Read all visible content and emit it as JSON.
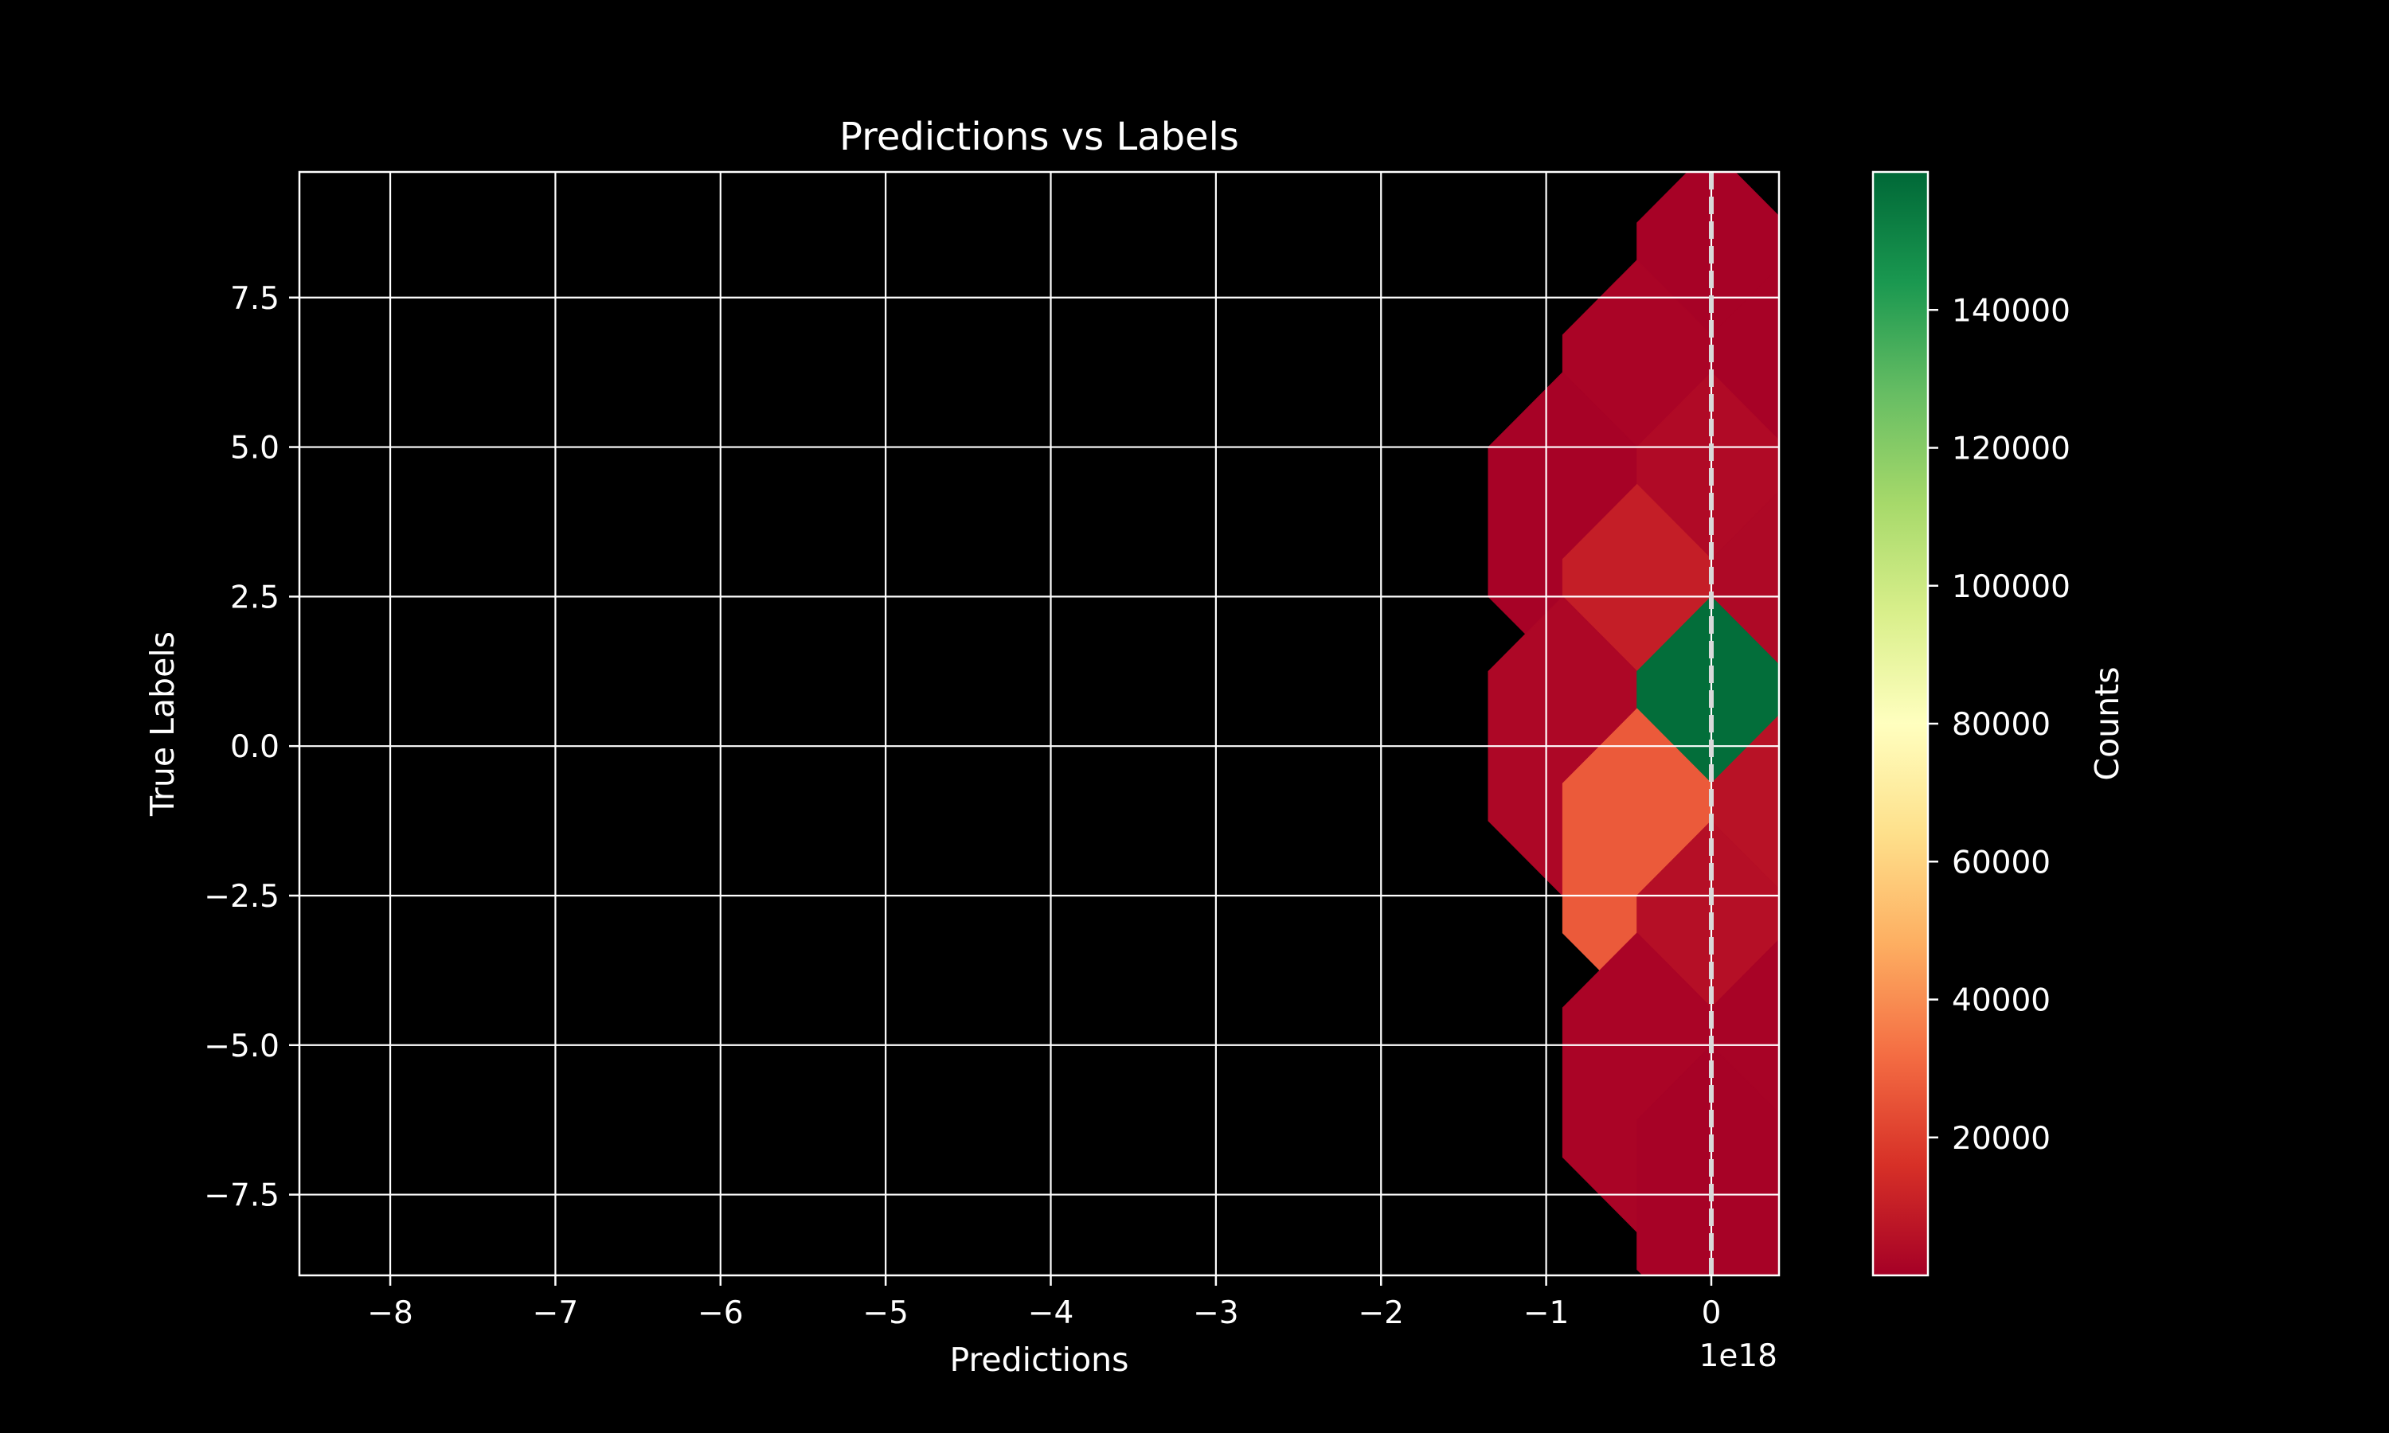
{
  "chart_data": {
    "type": "hexbin",
    "title": "Predictions vs Labels",
    "xlabel": "Predictions",
    "ylabel": "True Labels",
    "x_offset_text": "1e18",
    "xlim": [
      -8.55,
      0.41
    ],
    "ylim": [
      -8.85,
      9.6
    ],
    "xticks": [
      {
        "value": -8,
        "label": "−8"
      },
      {
        "value": -7,
        "label": "−7"
      },
      {
        "value": -6,
        "label": "−6"
      },
      {
        "value": -5,
        "label": "−5"
      },
      {
        "value": -4,
        "label": "−4"
      },
      {
        "value": -3,
        "label": "−3"
      },
      {
        "value": -2,
        "label": "−2"
      },
      {
        "value": -1,
        "label": "−1"
      },
      {
        "value": 0,
        "label": "0"
      }
    ],
    "yticks": [
      {
        "value": 7.5,
        "label": "7.5"
      },
      {
        "value": 5.0,
        "label": "5.0"
      },
      {
        "value": 2.5,
        "label": "2.5"
      },
      {
        "value": 0.0,
        "label": "0.0"
      },
      {
        "value": -2.5,
        "label": "−2.5"
      },
      {
        "value": -5.0,
        "label": "−5.0"
      },
      {
        "value": -7.5,
        "label": "−7.5"
      }
    ],
    "grid": true,
    "reference_line": {
      "x": 0,
      "style": "dashed",
      "color": "#d9d9d9"
    },
    "hex_radius_y": 2.5,
    "hex_half_width_x": 0.45,
    "hexbins": [
      {
        "x": 0.0,
        "y": 7.5,
        "count": 600
      },
      {
        "x": -0.45,
        "y": 5.625,
        "count": 1500
      },
      {
        "x": 0.45,
        "y": 5.625,
        "count": 800
      },
      {
        "x": -0.9,
        "y": 3.75,
        "count": 700
      },
      {
        "x": 0.0,
        "y": 3.75,
        "count": 3500
      },
      {
        "x": -0.45,
        "y": 1.875,
        "count": 10000
      },
      {
        "x": 0.45,
        "y": 1.875,
        "count": 3000
      },
      {
        "x": -0.9,
        "y": 0.0,
        "count": 2500
      },
      {
        "x": 0.0,
        "y": 0.0,
        "count": 158000
      },
      {
        "x": -0.45,
        "y": -1.875,
        "count": 27000
      },
      {
        "x": 0.45,
        "y": -1.875,
        "count": 6000
      },
      {
        "x": 0.0,
        "y": -3.75,
        "count": 5000
      },
      {
        "x": -0.45,
        "y": -5.625,
        "count": 1500
      },
      {
        "x": 0.45,
        "y": -5.625,
        "count": 900
      },
      {
        "x": 0.0,
        "y": -7.5,
        "count": 700
      }
    ],
    "colorbar": {
      "label": "Counts",
      "colormap": "RdYlGn",
      "vmin": 1,
      "vmax": 160000,
      "ticks": [
        {
          "value": 20000,
          "label": "20000"
        },
        {
          "value": 40000,
          "label": "40000"
        },
        {
          "value": 60000,
          "label": "60000"
        },
        {
          "value": 80000,
          "label": "80000"
        },
        {
          "value": 100000,
          "label": "100000"
        },
        {
          "value": 120000,
          "label": "120000"
        },
        {
          "value": 140000,
          "label": "140000"
        }
      ]
    },
    "colormap_stops": [
      "#a50026",
      "#d73027",
      "#f46d43",
      "#fdae61",
      "#fee08b",
      "#ffffbf",
      "#d9ef8b",
      "#a6d96a",
      "#66bd63",
      "#1a9850",
      "#006837"
    ]
  }
}
